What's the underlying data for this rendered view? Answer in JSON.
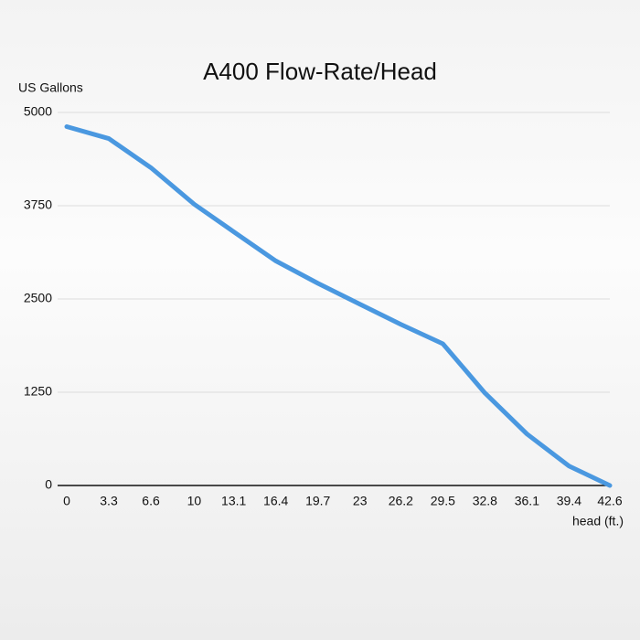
{
  "chart_data": {
    "type": "line",
    "title": "A400 Flow-Rate/Head",
    "y_label": "US Gallons",
    "x_label": "head (ft.)",
    "x": [
      0,
      3.3,
      6.6,
      10,
      13.1,
      16.4,
      19.7,
      23,
      26.2,
      29.5,
      32.8,
      36.1,
      39.4,
      42.6
    ],
    "values": [
      4810,
      4650,
      4260,
      3770,
      3400,
      3010,
      2710,
      2430,
      2160,
      1900,
      1240,
      690,
      260,
      0
    ],
    "color": "#4a98e0",
    "xlim": [
      0,
      42.6
    ],
    "xticks": [
      0,
      3.3,
      6.6,
      10,
      13.1,
      16.4,
      19.7,
      23,
      26.2,
      29.5,
      32.8,
      36.1,
      39.4,
      42.6
    ],
    "ylim": [
      0,
      5000
    ],
    "yticks": [
      0,
      1250,
      2500,
      3750,
      5000
    ],
    "grid": true
  }
}
